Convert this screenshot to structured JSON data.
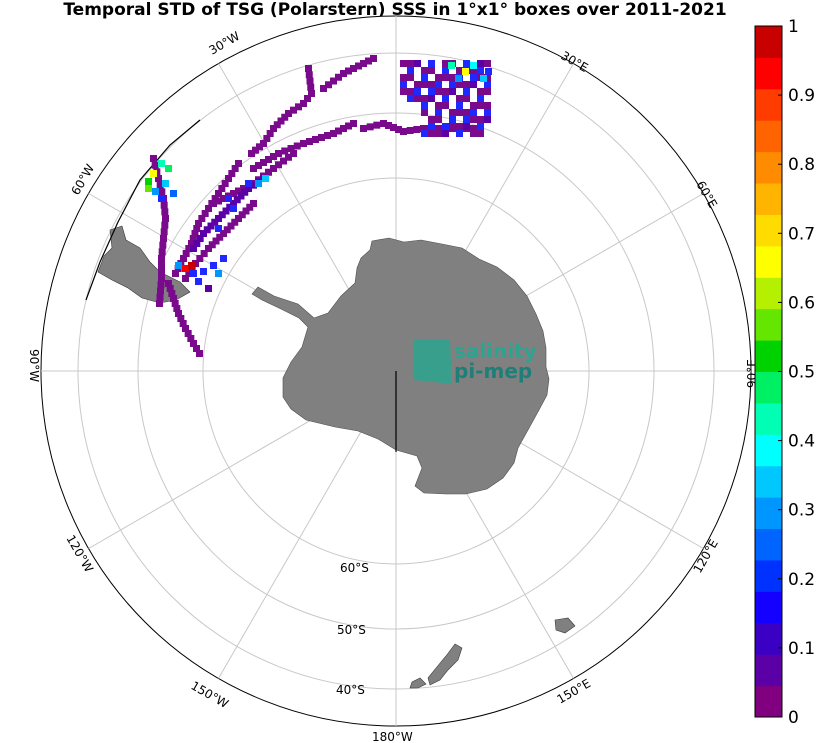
{
  "title": "Temporal STD of TSG (Polarstern) SSS in 1°x1° boxes over 2011-2021",
  "meridian_labels": [
    {
      "lon": "30°W"
    },
    {
      "lon": "30°E"
    },
    {
      "lon": "60°W"
    },
    {
      "lon": "60°E"
    },
    {
      "lon": "90°W"
    },
    {
      "lon": "90°E"
    },
    {
      "lon": "120°W"
    },
    {
      "lon": "120°E"
    },
    {
      "lon": "150°W"
    },
    {
      "lon": "150°E"
    },
    {
      "lon": "180°W"
    }
  ],
  "latitude_labels": [
    "60°S",
    "50°S",
    "40°S"
  ],
  "logo": {
    "line1": "salinity",
    "line2": "pi-mep"
  },
  "colorbar": {
    "ticks": [
      "0",
      "0.1",
      "0.2",
      "0.3",
      "0.4",
      "0.5",
      "0.6",
      "0.7",
      "0.8",
      "0.9",
      "1"
    ],
    "range": [
      0,
      1
    ],
    "colors": [
      "#800080",
      "#5a00a6",
      "#3a00c4",
      "#1400ff",
      "#0032ff",
      "#0064ff",
      "#0096ff",
      "#00c8ff",
      "#00ffff",
      "#00ffb4",
      "#00f064",
      "#00d200",
      "#64e600",
      "#b4f000",
      "#ffff00",
      "#ffdc00",
      "#ffb400",
      "#ff8c00",
      "#ff6400",
      "#ff3c00",
      "#ff0000",
      "#c80000"
    ]
  },
  "colors": {
    "land": "#808080",
    "graticule": "#c8c8c8",
    "coast": "#3a3a3a"
  }
}
